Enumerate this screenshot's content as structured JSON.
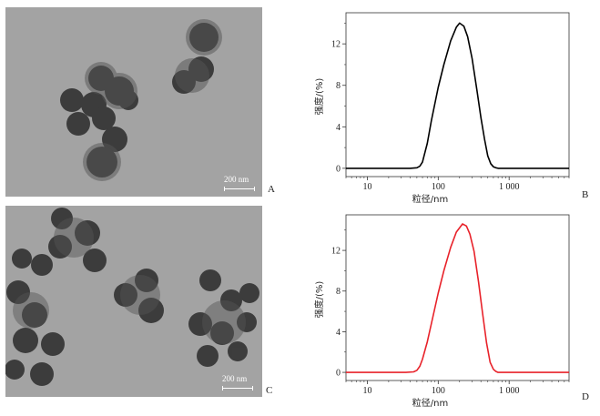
{
  "panels": {
    "A": {
      "letter": "A",
      "scale_label": "200 nm"
    },
    "B": {
      "letter": "B"
    },
    "C": {
      "letter": "C",
      "scale_label": "200 nm"
    },
    "D": {
      "letter": "D"
    }
  },
  "chart_data": [
    {
      "type": "line",
      "panel": "B",
      "xlabel": "粒径/nm",
      "ylabel": "强度/(%)",
      "x_scale": "log",
      "xlim": [
        5,
        7000
      ],
      "ylim": [
        -0.8,
        15
      ],
      "x_ticks": [
        {
          "value": 10,
          "label": "10"
        },
        {
          "value": 100,
          "label": "100"
        },
        {
          "value": 1000,
          "label": "1 000"
        }
      ],
      "y_ticks": [
        {
          "value": 0,
          "label": "0"
        },
        {
          "value": 4,
          "label": "4"
        },
        {
          "value": 8,
          "label": "8"
        },
        {
          "value": 12,
          "label": "12"
        }
      ],
      "series": [
        {
          "color": "#000000",
          "x": [
            5,
            40,
            50,
            55,
            60,
            70,
            80,
            100,
            120,
            150,
            180,
            200,
            230,
            260,
            300,
            350,
            400,
            450,
            500,
            550,
            600,
            650,
            700,
            800,
            7000
          ],
          "y": [
            0,
            0,
            0.05,
            0.2,
            0.6,
            2.4,
            4.6,
            7.8,
            10.0,
            12.3,
            13.6,
            14.0,
            13.7,
            12.7,
            10.6,
            7.6,
            4.9,
            2.8,
            1.2,
            0.45,
            0.15,
            0.05,
            0,
            0,
            0
          ]
        }
      ]
    },
    {
      "type": "line",
      "panel": "D",
      "xlabel": "粒径/nm",
      "ylabel": "强度/(%)",
      "x_scale": "log",
      "xlim": [
        5,
        7000
      ],
      "ylim": [
        -0.8,
        15.5
      ],
      "x_ticks": [
        {
          "value": 10,
          "label": "10"
        },
        {
          "value": 100,
          "label": "100"
        },
        {
          "value": 1000,
          "label": "1 000"
        }
      ],
      "y_ticks": [
        {
          "value": 0,
          "label": "0"
        },
        {
          "value": 4,
          "label": "4"
        },
        {
          "value": 8,
          "label": "8"
        },
        {
          "value": 12,
          "label": "12"
        }
      ],
      "series": [
        {
          "color": "#e8222a",
          "x": [
            5,
            35,
            45,
            50,
            55,
            60,
            70,
            80,
            100,
            120,
            150,
            180,
            220,
            250,
            280,
            320,
            370,
            420,
            480,
            540,
            600,
            650,
            700,
            800,
            7000
          ],
          "y": [
            0,
            0,
            0.05,
            0.2,
            0.6,
            1.3,
            3.0,
            4.8,
            7.8,
            10.0,
            12.3,
            13.8,
            14.6,
            14.4,
            13.6,
            11.9,
            8.9,
            5.9,
            2.9,
            1.0,
            0.3,
            0.1,
            0,
            0,
            0
          ]
        }
      ]
    }
  ]
}
